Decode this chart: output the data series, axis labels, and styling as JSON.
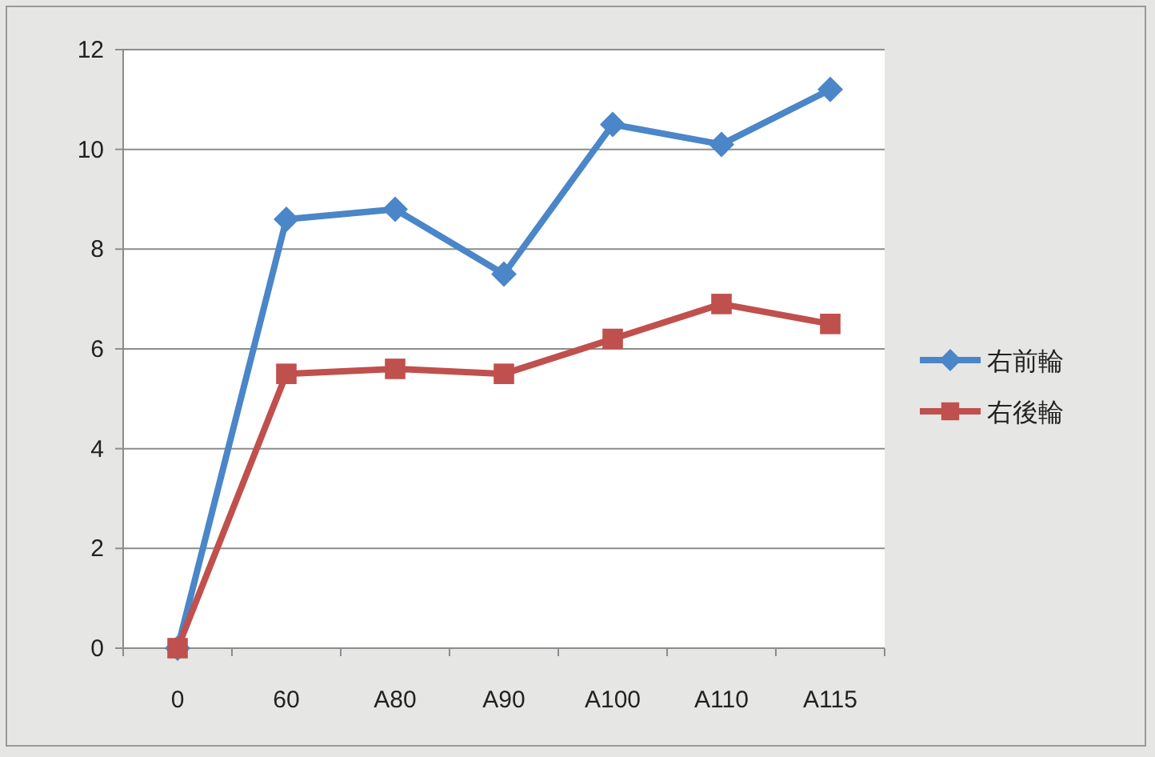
{
  "chart_data": {
    "type": "line",
    "categories": [
      "0",
      "60",
      "A80",
      "A90",
      "A100",
      "A110",
      "A115"
    ],
    "series": [
      {
        "name": "右前輪",
        "color": "#4a86c8",
        "marker": "diamond",
        "values": [
          0,
          8.6,
          8.8,
          7.5,
          10.5,
          10.1,
          11.2
        ]
      },
      {
        "name": "右後輪",
        "color": "#c0504d",
        "marker": "square",
        "values": [
          0,
          5.5,
          5.6,
          5.5,
          6.2,
          6.9,
          6.5
        ]
      }
    ],
    "ylim": [
      0,
      12
    ],
    "yticks": [
      0,
      2,
      4,
      6,
      8,
      10,
      12
    ],
    "grid": "y",
    "legend": "right"
  }
}
